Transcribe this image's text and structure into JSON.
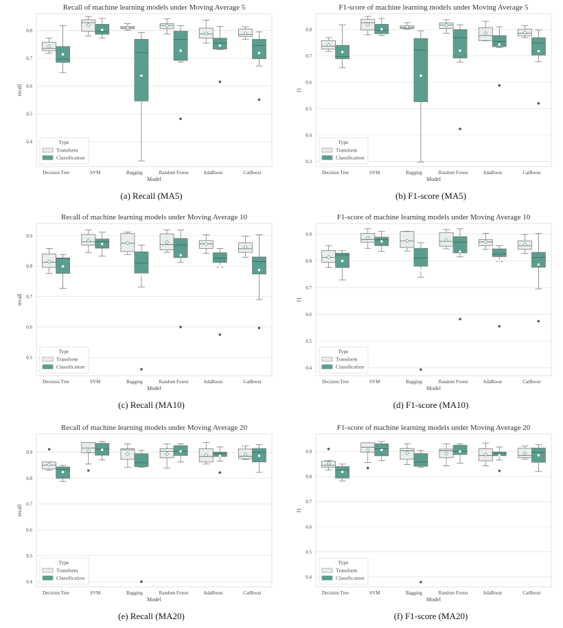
{
  "colors": {
    "transform_fill": "#e9edeb",
    "classification_fill": "#5a9e8f",
    "edge": "#7a7a7a",
    "grid": "#e4e4e4",
    "outlier": "#555555",
    "mean_edge": "#5a9e8f"
  },
  "legend": {
    "title": "Type",
    "entries": [
      "Transform",
      "Classification"
    ],
    "placement": "lower-left"
  },
  "box_format": [
    "whisker_low",
    "q1",
    "median",
    "q3",
    "whisker_high",
    "mean",
    "outliers"
  ],
  "chart_data": [
    {
      "type": "box",
      "caption": "(a)  Recall (MA5)",
      "title": "Recall of machine learning models under Moving Average 5",
      "xlabel": "Model",
      "ylabel": "recall",
      "ylim": [
        0.31,
        0.86
      ],
      "yticks": [
        "0.4",
        "0.5",
        "0.6",
        "0.7",
        "0.8"
      ],
      "grid": true,
      "categories": [
        "Decision Tree",
        "SVM",
        "Bagging",
        "Random Forest",
        "AdaBoost",
        "CatBoost"
      ],
      "series": [
        {
          "name": "Transform",
          "boxes": [
            [
              0.718,
              0.727,
              0.735,
              0.757,
              0.772,
              0.742,
              []
            ],
            [
              0.78,
              0.797,
              0.828,
              0.838,
              0.85,
              0.82,
              []
            ],
            [
              0.8,
              0.806,
              0.809,
              0.814,
              0.824,
              0.81,
              []
            ],
            [
              0.787,
              0.806,
              0.818,
              0.824,
              0.842,
              0.817,
              []
            ],
            [
              0.754,
              0.772,
              0.787,
              0.808,
              0.837,
              0.789,
              []
            ],
            [
              0.768,
              0.778,
              0.785,
              0.805,
              0.813,
              0.789,
              []
            ]
          ]
        },
        {
          "name": "Classification",
          "boxes": [
            [
              0.648,
              0.685,
              0.697,
              0.742,
              0.817,
              0.714,
              []
            ],
            [
              0.772,
              0.786,
              0.795,
              0.822,
              0.843,
              0.802,
              []
            ],
            [
              0.33,
              0.546,
              0.72,
              0.768,
              0.792,
              0.637,
              []
            ],
            [
              0.686,
              0.692,
              0.767,
              0.797,
              0.817,
              0.727,
              [
                0.482
              ]
            ],
            [
              0.731,
              0.733,
              0.754,
              0.772,
              0.814,
              0.745,
              [
                0.615
              ]
            ],
            [
              0.672,
              0.698,
              0.746,
              0.768,
              0.795,
              0.719,
              [
                0.551
              ]
            ]
          ]
        }
      ]
    },
    {
      "type": "box",
      "caption": "(b)  F1-score (MA5)",
      "title": "F1-score of machine learning models under Moving Average 5",
      "xlabel": "Model",
      "ylabel": "f1",
      "ylim": [
        0.28,
        0.86
      ],
      "yticks": [
        "0.3",
        "0.4",
        "0.5",
        "0.6",
        "0.7",
        "0.8"
      ],
      "grid": true,
      "categories": [
        "Decision Tree",
        "SVM",
        "Bagging",
        "Random Forest",
        "AdaBoost",
        "CatBoost"
      ],
      "series": [
        {
          "name": "Transform",
          "boxes": [
            [
              0.717,
              0.726,
              0.737,
              0.758,
              0.769,
              0.741,
              []
            ],
            [
              0.78,
              0.798,
              0.826,
              0.839,
              0.85,
              0.82,
              []
            ],
            [
              0.801,
              0.804,
              0.808,
              0.814,
              0.826,
              0.81,
              []
            ],
            [
              0.786,
              0.804,
              0.817,
              0.825,
              0.837,
              0.816,
              []
            ],
            [
              0.757,
              0.758,
              0.777,
              0.807,
              0.831,
              0.786,
              []
            ],
            [
              0.769,
              0.776,
              0.786,
              0.801,
              0.815,
              0.789,
              []
            ]
          ]
        },
        {
          "name": "Classification",
          "boxes": [
            [
              0.655,
              0.689,
              0.698,
              0.74,
              0.818,
              0.715,
              []
            ],
            [
              0.777,
              0.784,
              0.797,
              0.82,
              0.842,
              0.801,
              []
            ],
            [
              0.297,
              0.526,
              0.722,
              0.766,
              0.795,
              0.625,
              []
            ],
            [
              0.676,
              0.692,
              0.769,
              0.8,
              0.818,
              0.72,
              [
                0.423
              ]
            ],
            [
              0.731,
              0.735,
              0.755,
              0.777,
              0.81,
              0.743,
              [
                0.588
              ]
            ],
            [
              0.678,
              0.703,
              0.749,
              0.769,
              0.798,
              0.718,
              [
                0.52
              ]
            ]
          ]
        }
      ]
    },
    {
      "type": "box",
      "caption": "(c)  Recall (MA10)",
      "title": "Recall of machine learning models under Moving Average 10",
      "xlabel": "Model",
      "ylabel": "recall",
      "ylim": [
        0.44,
        0.94
      ],
      "yticks": [
        "0.5",
        "0.6",
        "0.7",
        "0.8",
        "0.9"
      ],
      "grid": true,
      "categories": [
        "Decision Tree",
        "SVM",
        "Bagging",
        "Random Forest",
        "AdaBoost",
        "CatBoost"
      ],
      "series": [
        {
          "name": "Transform",
          "boxes": [
            [
              0.776,
              0.796,
              0.813,
              0.84,
              0.858,
              0.815,
              []
            ],
            [
              0.845,
              0.869,
              0.88,
              0.904,
              0.919,
              0.884,
              []
            ],
            [
              0.838,
              0.848,
              0.875,
              0.907,
              0.912,
              0.876,
              []
            ],
            [
              0.845,
              0.853,
              0.871,
              0.906,
              0.919,
              0.879,
              []
            ],
            [
              0.842,
              0.858,
              0.873,
              0.884,
              0.903,
              0.873,
              []
            ],
            [
              0.829,
              0.845,
              0.857,
              0.877,
              0.898,
              0.862,
              []
            ]
          ]
        },
        {
          "name": "Classification",
          "boxes": [
            [
              0.727,
              0.776,
              0.825,
              0.827,
              0.838,
              0.799,
              []
            ],
            [
              0.833,
              0.859,
              0.88,
              0.889,
              0.912,
              0.873,
              []
            ],
            [
              0.731,
              0.777,
              0.81,
              0.847,
              0.869,
              0.772,
              [
                0.461
              ]
            ],
            [
              0.813,
              0.828,
              0.869,
              0.891,
              0.919,
              0.836,
              [
                0.6
              ]
            ],
            [
              0.797,
              0.812,
              0.826,
              0.844,
              0.858,
              0.799,
              [
                0.575
              ]
            ],
            [
              0.69,
              0.774,
              0.815,
              0.83,
              0.903,
              0.787,
              [
                0.597
              ]
            ]
          ]
        }
      ]
    },
    {
      "type": "box",
      "caption": "(d)  F1-score (MA10)",
      "title": "F1-score of machine learning models under Moving Average 10",
      "xlabel": "Model",
      "ylabel": "f1",
      "ylim": [
        0.37,
        0.94
      ],
      "yticks": [
        "0.4",
        "0.5",
        "0.6",
        "0.7",
        "0.8",
        "0.9"
      ],
      "grid": true,
      "categories": [
        "Decision Tree",
        "SVM",
        "Bagging",
        "Random Forest",
        "AdaBoost",
        "CatBoost"
      ],
      "series": [
        {
          "name": "Transform",
          "boxes": [
            [
              0.775,
              0.795,
              0.813,
              0.839,
              0.857,
              0.814,
              []
            ],
            [
              0.847,
              0.87,
              0.88,
              0.903,
              0.92,
              0.886,
              []
            ],
            [
              0.837,
              0.85,
              0.875,
              0.91,
              0.911,
              0.875,
              []
            ],
            [
              0.845,
              0.855,
              0.873,
              0.906,
              0.917,
              0.878,
              []
            ],
            [
              0.843,
              0.857,
              0.871,
              0.88,
              0.903,
              0.871,
              []
            ],
            [
              0.828,
              0.844,
              0.857,
              0.875,
              0.899,
              0.861,
              []
            ]
          ]
        },
        {
          "name": "Classification",
          "boxes": [
            [
              0.729,
              0.775,
              0.822,
              0.829,
              0.838,
              0.8,
              []
            ],
            [
              0.835,
              0.857,
              0.879,
              0.889,
              0.91,
              0.873,
              []
            ],
            [
              0.739,
              0.78,
              0.811,
              0.847,
              0.868,
              0.765,
              [
                0.393
              ]
            ],
            [
              0.815,
              0.83,
              0.87,
              0.891,
              0.92,
              0.835,
              [
                0.582
              ]
            ],
            [
              0.797,
              0.816,
              0.826,
              0.845,
              0.857,
              0.798,
              [
                0.555
              ]
            ],
            [
              0.695,
              0.776,
              0.813,
              0.832,
              0.903,
              0.786,
              [
                0.574
              ]
            ]
          ]
        }
      ]
    },
    {
      "type": "box",
      "caption": "(e)  Recall (MA20)",
      "title": "Recall of machine learning models under Moving Average 20",
      "xlabel": "Model",
      "ylabel": "recall",
      "ylim": [
        0.38,
        0.97
      ],
      "yticks": [
        "0.4",
        "0.5",
        "0.6",
        "0.7",
        "0.8",
        "0.9"
      ],
      "grid": true,
      "categories": [
        "Decision Tree",
        "SVM",
        "Bagging",
        "Random Forest",
        "AdaBoost",
        "CatBoost"
      ],
      "series": [
        {
          "name": "Transform",
          "boxes": [
            [
              0.83,
              0.835,
              0.85,
              0.862,
              0.862,
              0.852,
              [
                0.911
              ]
            ],
            [
              0.854,
              0.897,
              0.916,
              0.937,
              0.937,
              0.905,
              [
                0.829
              ]
            ],
            [
              0.841,
              0.872,
              0.909,
              0.913,
              0.932,
              0.893,
              []
            ],
            [
              0.838,
              0.878,
              0.903,
              0.913,
              0.932,
              0.893,
              []
            ],
            [
              0.854,
              0.862,
              0.883,
              0.913,
              0.937,
              0.889,
              []
            ],
            [
              0.871,
              0.875,
              0.884,
              0.912,
              0.924,
              0.891,
              []
            ]
          ]
        },
        {
          "name": "Classification",
          "boxes": [
            [
              0.787,
              0.799,
              0.833,
              0.843,
              0.849,
              0.823,
              []
            ],
            [
              0.87,
              0.888,
              0.912,
              0.934,
              0.941,
              0.909,
              []
            ],
            [
              0.841,
              0.844,
              0.859,
              0.894,
              0.907,
              0.812,
              [
                0.4
              ]
            ],
            [
              0.862,
              0.887,
              0.903,
              0.925,
              0.932,
              0.903,
              []
            ],
            [
              0.866,
              0.883,
              0.894,
              0.9,
              0.92,
              0.886,
              [
                0.821
              ]
            ],
            [
              0.822,
              0.862,
              0.9,
              0.914,
              0.929,
              0.886,
              []
            ]
          ]
        }
      ]
    },
    {
      "type": "box",
      "caption": "(f)  F1-score (MA20)",
      "title": "F1-score of machine learning models under Moving Average 20",
      "xlabel": "Model",
      "ylabel": "f1",
      "ylim": [
        0.36,
        0.97
      ],
      "yticks": [
        "0.4",
        "0.5",
        "0.6",
        "0.7",
        "0.8",
        "0.9"
      ],
      "grid": true,
      "categories": [
        "Decision Tree",
        "SVM",
        "Bagging",
        "Random Forest",
        "AdaBoost",
        "CatBoost"
      ],
      "series": [
        {
          "name": "Transform",
          "boxes": [
            [
              0.826,
              0.837,
              0.845,
              0.861,
              0.864,
              0.852,
              [
                0.91
              ]
            ],
            [
              0.856,
              0.897,
              0.917,
              0.935,
              0.935,
              0.905,
              [
                0.834
              ]
            ],
            [
              0.848,
              0.869,
              0.903,
              0.912,
              0.931,
              0.894,
              []
            ],
            [
              0.843,
              0.875,
              0.903,
              0.91,
              0.931,
              0.892,
              []
            ],
            [
              0.843,
              0.863,
              0.884,
              0.911,
              0.934,
              0.888,
              []
            ],
            [
              0.869,
              0.875,
              0.884,
              0.913,
              0.922,
              0.892,
              []
            ]
          ]
        },
        {
          "name": "Classification",
          "boxes": [
            [
              0.782,
              0.794,
              0.826,
              0.84,
              0.85,
              0.819,
              []
            ],
            [
              0.864,
              0.883,
              0.911,
              0.931,
              0.94,
              0.906,
              []
            ],
            [
              0.837,
              0.841,
              0.858,
              0.892,
              0.904,
              0.807,
              [
                0.379
              ]
            ],
            [
              0.853,
              0.888,
              0.9,
              0.925,
              0.931,
              0.9,
              []
            ],
            [
              0.866,
              0.883,
              0.893,
              0.898,
              0.918,
              0.885,
              [
                0.823
              ]
            ],
            [
              0.82,
              0.857,
              0.897,
              0.914,
              0.927,
              0.885,
              []
            ]
          ]
        }
      ]
    }
  ]
}
